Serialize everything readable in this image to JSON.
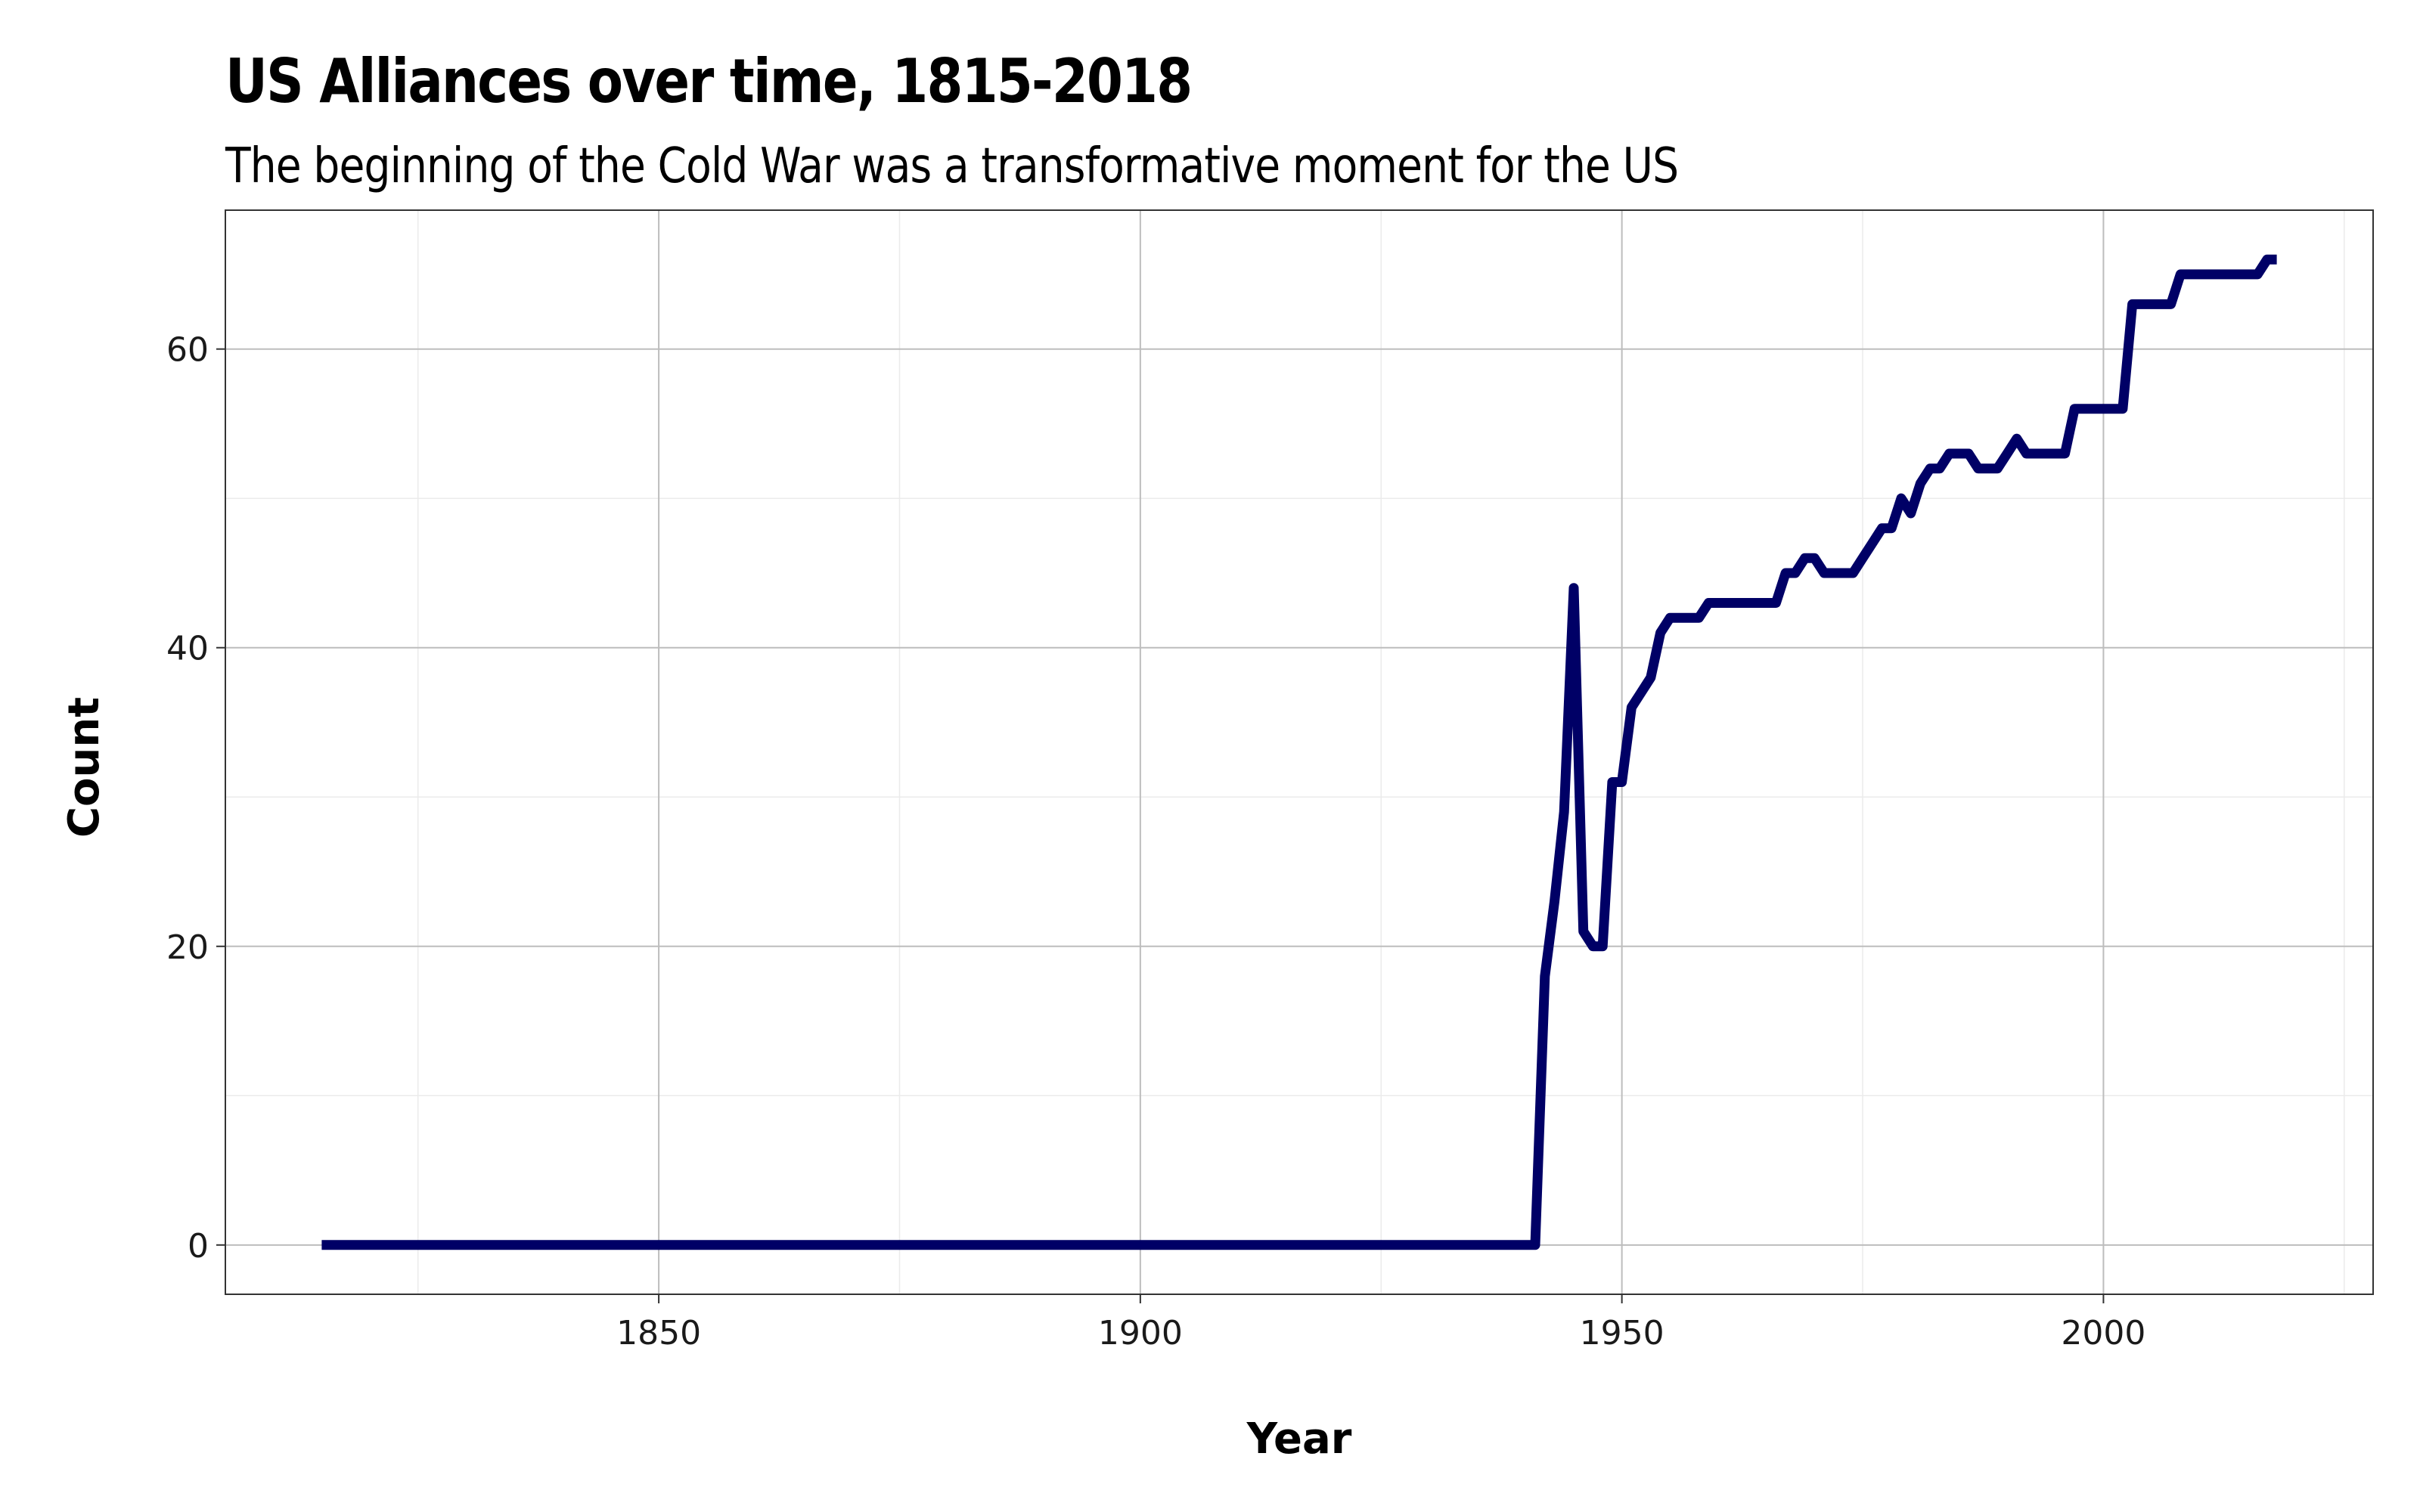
{
  "chart_data": {
    "type": "line",
    "title": "US Alliances over time, 1815-2018",
    "subtitle": "The beginning of the Cold War was a transformative moment for the US",
    "xlabel": "Year",
    "ylabel": "Count",
    "xlim": [
      1805,
      2028
    ],
    "ylim": [
      -3.3,
      69.3
    ],
    "x_ticks": [
      1850,
      1900,
      1950,
      2000
    ],
    "x_tick_labels": [
      "1850",
      "1900",
      "1950",
      "2000"
    ],
    "x_minor_ticks": [
      1825,
      1875,
      1925,
      1975,
      2025
    ],
    "y_ticks": [
      0,
      20,
      40,
      60
    ],
    "y_tick_labels": [
      "0",
      "20",
      "40",
      "60"
    ],
    "y_minor_ticks": [
      10,
      30,
      50
    ],
    "grid": true,
    "legend": "none",
    "line_color": "#000066",
    "series": [
      {
        "x": [
          1815,
          1941,
          1942,
          1943,
          1944,
          1945,
          1946,
          1947,
          1948,
          1949,
          1950,
          1951,
          1952,
          1953,
          1954,
          1955,
          1956,
          1957,
          1958,
          1959,
          1960,
          1961,
          1962,
          1963,
          1964,
          1965,
          1966,
          1967,
          1968,
          1969,
          1970,
          1971,
          1972,
          1973,
          1974,
          1975,
          1976,
          1977,
          1978,
          1979,
          1980,
          1981,
          1982,
          1983,
          1984,
          1985,
          1986,
          1987,
          1988,
          1989,
          1990,
          1991,
          1992,
          1993,
          1994,
          1995,
          1996,
          1997,
          1998,
          1999,
          2000,
          2001,
          2002,
          2003,
          2004,
          2005,
          2006,
          2007,
          2008,
          2009,
          2010,
          2011,
          2012,
          2013,
          2014,
          2015,
          2016,
          2017,
          2018
        ],
        "y": [
          0,
          0,
          18,
          23,
          29,
          44,
          21,
          20,
          20,
          31,
          31,
          36,
          37,
          38,
          41,
          42,
          42,
          42,
          42,
          43,
          43,
          43,
          43,
          43,
          43,
          43,
          43,
          45,
          45,
          46,
          46,
          45,
          45,
          45,
          45,
          46,
          47,
          48,
          48,
          50,
          49,
          51,
          52,
          52,
          53,
          53,
          53,
          52,
          52,
          52,
          53,
          54,
          53,
          53,
          53,
          53,
          53,
          56,
          56,
          56,
          56,
          56,
          56,
          63,
          63,
          63,
          63,
          63,
          65,
          65,
          65,
          65,
          65,
          65,
          65,
          65,
          65,
          66,
          66
        ]
      }
    ]
  }
}
